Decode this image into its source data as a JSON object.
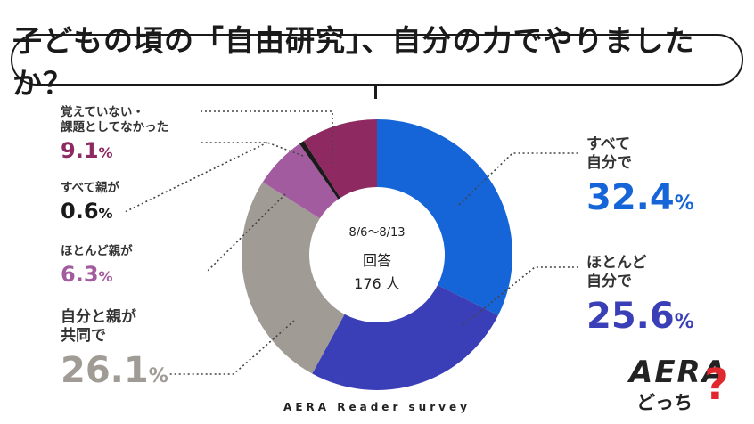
{
  "question": "子どもの頃の「自由研究」、自分の力でやりましたか？",
  "center": {
    "period": "8/6～8/13",
    "label": "回答",
    "count": "176 人"
  },
  "footer": "AERA Reader survey",
  "logo": {
    "brand": "AERA",
    "sub": "どっち",
    "mark": "?"
  },
  "chart_data": {
    "type": "pie",
    "donut": true,
    "start": "top",
    "direction": "clockwise",
    "slices": [
      {
        "name": "すべて自分で",
        "value": 32.4,
        "color": "#1565d8"
      },
      {
        "name": "ほとんど自分で",
        "value": 25.6,
        "color": "#3a3fb8"
      },
      {
        "name": "自分と親が共同で",
        "value": 26.1,
        "color": "#a09b95"
      },
      {
        "name": "ほとんど親が",
        "value": 6.3,
        "color": "#a35b9f"
      },
      {
        "name": "すべて親が",
        "value": 0.6,
        "color": "#1a1a1a"
      },
      {
        "name": "覚えていない・課題としてなかった",
        "value": 9.1,
        "color": "#8e2a61"
      }
    ]
  },
  "labels": [
    {
      "lines": [
        "すべて",
        "自分で"
      ],
      "pct": "32.4",
      "sign": "%",
      "color": "#1565d8"
    },
    {
      "lines": [
        "ほとんど",
        "自分で"
      ],
      "pct": "25.6",
      "sign": "%",
      "color": "#3a3fb8"
    },
    {
      "lines": [
        "自分と親が",
        "共同で"
      ],
      "pct": "26.1",
      "sign": "%",
      "color": "#a09b95"
    },
    {
      "lines": [
        "ほとんど親が"
      ],
      "pct": "6.3",
      "sign": "%",
      "color": "#a35b9f"
    },
    {
      "lines": [
        "すべて親が"
      ],
      "pct": "0.6",
      "sign": "%",
      "color": "#1a1a1a"
    },
    {
      "lines": [
        "覚えていない・",
        "課題としてなかった"
      ],
      "pct": "9.1",
      "sign": "%",
      "color": "#8e2a61"
    }
  ]
}
